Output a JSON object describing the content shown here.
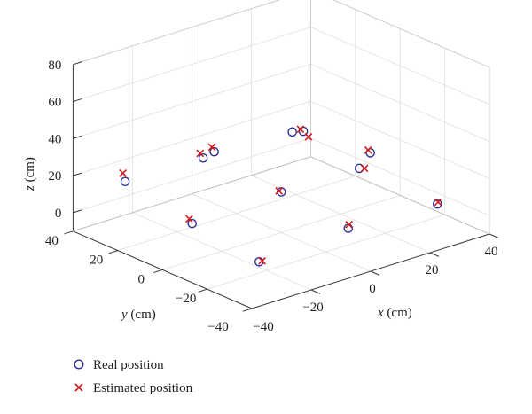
{
  "chart_data": {
    "type": "scatter",
    "projection": "3d",
    "grid": true,
    "legend_position": "bottom-left",
    "axes": {
      "x": {
        "label_var": "x",
        "label_unit": " (cm)",
        "ticks": [
          -20,
          0,
          20,
          40
        ],
        "tick_labels": [
          "−20",
          "0",
          "20",
          "40"
        ],
        "range": [
          -40,
          40
        ]
      },
      "y": {
        "label_var": "y",
        "label_unit": " (cm)",
        "ticks": [
          -40,
          -20,
          0,
          20,
          40
        ],
        "tick_labels": [
          "−40",
          "−20",
          "0",
          "20",
          "40"
        ],
        "range": [
          -40,
          40
        ]
      },
      "z": {
        "label_var": "z",
        "label_unit": " (cm)",
        "ticks": [
          0,
          20,
          40,
          60,
          80
        ],
        "tick_labels": [
          "0",
          "20",
          "40",
          "60",
          "80"
        ],
        "range": [
          -10,
          80
        ]
      },
      "corner_tick_labels": [
        "−40",
        "−40"
      ]
    },
    "series": [
      {
        "name": "Real position",
        "marker": "circle",
        "color": "#2e3192",
        "points": [
          [
            -30,
            30,
            17
          ],
          [
            0,
            30,
            18
          ],
          [
            30,
            30,
            14
          ],
          [
            -30,
            0,
            10
          ],
          [
            0,
            0,
            12
          ],
          [
            30,
            0,
            18
          ],
          [
            -30,
            -30,
            5
          ],
          [
            0,
            -30,
            8
          ],
          [
            30,
            -30,
            6
          ],
          [
            -15,
            15,
            30
          ],
          [
            15,
            15,
            29
          ],
          [
            15,
            -15,
            25
          ]
        ]
      },
      {
        "name": "Estimated position",
        "marker": "x",
        "color": "#d7191c",
        "points": [
          [
            -30,
            31,
            21
          ],
          [
            0,
            31,
            20
          ],
          [
            31,
            29,
            11
          ],
          [
            -31,
            0,
            13
          ],
          [
            0,
            1,
            12
          ],
          [
            30,
            1,
            19
          ],
          [
            -29,
            -30,
            5
          ],
          [
            1,
            -29,
            9
          ],
          [
            31,
            -29,
            6
          ],
          [
            -16,
            15,
            33
          ],
          [
            17,
            14,
            30
          ],
          [
            16,
            -16,
            25
          ]
        ]
      }
    ]
  }
}
